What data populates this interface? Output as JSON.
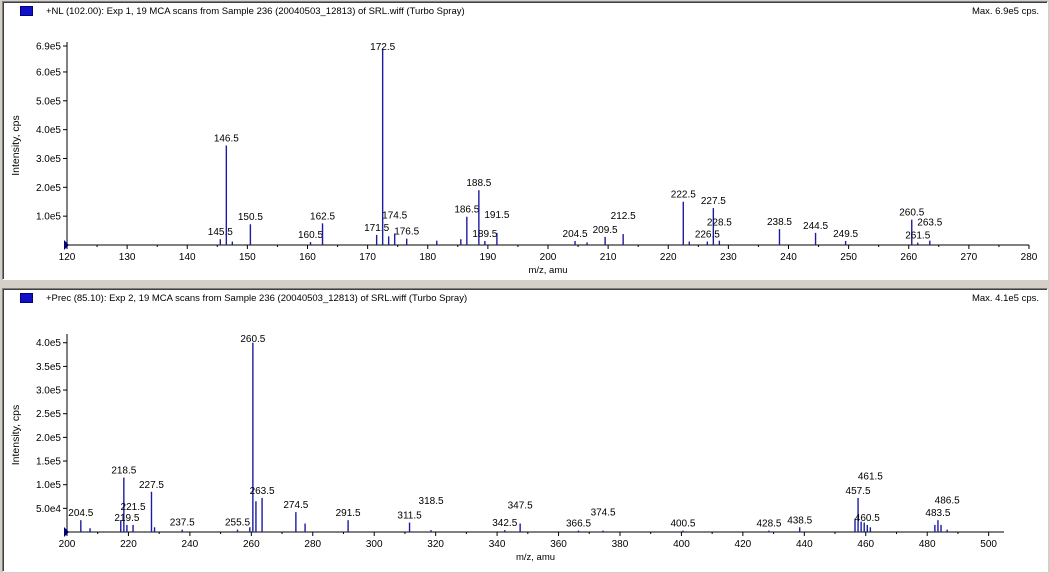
{
  "chart_data": [
    {
      "type": "bar",
      "title": "+NL (102.00): Exp 1, 19 MCA scans from Sample 236 (20040503_12813) of SRL.wiff (Turbo Spray)",
      "max_label": "Max. 6.9e5 cps.",
      "xlabel": "m/z, amu",
      "ylabel": "Intensity, cps",
      "xlim": [
        120,
        280
      ],
      "ylim": [
        0,
        690000
      ],
      "x_ticks": [
        120,
        130,
        140,
        150,
        160,
        170,
        180,
        190,
        200,
        210,
        220,
        230,
        240,
        250,
        260,
        270,
        280
      ],
      "y_ticks": [
        {
          "value": 100000,
          "label": "1.0e5"
        },
        {
          "value": 200000,
          "label": "2.0e5"
        },
        {
          "value": 300000,
          "label": "3.0e5"
        },
        {
          "value": 400000,
          "label": "4.0e5"
        },
        {
          "value": 500000,
          "label": "5.0e5"
        },
        {
          "value": 600000,
          "label": "6.0e5"
        },
        {
          "value": 690000,
          "label": "6.9e5"
        }
      ],
      "peaks": [
        {
          "x": 145.5,
          "y": 20000,
          "label": "145.5"
        },
        {
          "x": 146.5,
          "y": 345000,
          "label": "146.5"
        },
        {
          "x": 147.5,
          "y": 12000
        },
        {
          "x": 150.5,
          "y": 72000,
          "label": "150.5"
        },
        {
          "x": 160.5,
          "y": 10000,
          "label": "160.5"
        },
        {
          "x": 162.5,
          "y": 75000,
          "label": "162.5"
        },
        {
          "x": 171.5,
          "y": 35000,
          "label": "171.5"
        },
        {
          "x": 172.5,
          "y": 680000,
          "label": "172.5"
        },
        {
          "x": 173.5,
          "y": 30000
        },
        {
          "x": 174.5,
          "y": 40000,
          "label": "174.5"
        },
        {
          "x": 176.5,
          "y": 22000,
          "label": "176.5"
        },
        {
          "x": 181.5,
          "y": 15000
        },
        {
          "x": 185.5,
          "y": 20000
        },
        {
          "x": 186.5,
          "y": 98000,
          "label": "186.5"
        },
        {
          "x": 188.5,
          "y": 190000,
          "label": "188.5"
        },
        {
          "x": 189.5,
          "y": 14000,
          "label": "189.5"
        },
        {
          "x": 191.5,
          "y": 42000,
          "label": "191.5"
        },
        {
          "x": 204.5,
          "y": 14000,
          "label": "204.5"
        },
        {
          "x": 206.5,
          "y": 9000
        },
        {
          "x": 209.5,
          "y": 28000,
          "label": "209.5"
        },
        {
          "x": 212.5,
          "y": 38000,
          "label": "212.5"
        },
        {
          "x": 222.5,
          "y": 150000,
          "label": "222.5"
        },
        {
          "x": 223.5,
          "y": 12000
        },
        {
          "x": 226.5,
          "y": 12000,
          "label": "226.5"
        },
        {
          "x": 227.5,
          "y": 128000,
          "label": "227.5"
        },
        {
          "x": 228.5,
          "y": 15000,
          "label": "228.5"
        },
        {
          "x": 238.5,
          "y": 55000,
          "label": "238.5"
        },
        {
          "x": 244.5,
          "y": 42000,
          "label": "244.5"
        },
        {
          "x": 249.5,
          "y": 14000,
          "label": "249.5"
        },
        {
          "x": 260.5,
          "y": 88000,
          "label": "260.5"
        },
        {
          "x": 261.5,
          "y": 8000,
          "label": "261.5"
        },
        {
          "x": 263.5,
          "y": 15000,
          "label": "263.5"
        }
      ],
      "grid": false
    },
    {
      "type": "bar",
      "title": "+Prec (85.10): Exp 2, 19 MCA scans from Sample 236 (20040503_12813) of SRL.wiff (Turbo Spray)",
      "max_label": "Max. 4.1e5 cps.",
      "xlabel": "m/z, amu",
      "ylabel": "Intensity, cps",
      "xlim": [
        200,
        505
      ],
      "ylim": [
        0,
        410000
      ],
      "x_ticks": [
        200,
        220,
        240,
        260,
        280,
        300,
        320,
        340,
        360,
        380,
        400,
        420,
        440,
        460,
        480,
        500
      ],
      "y_ticks": [
        {
          "value": 50000,
          "label": "5.0e4"
        },
        {
          "value": 100000,
          "label": "1.0e5"
        },
        {
          "value": 150000,
          "label": "1.5e5"
        },
        {
          "value": 200000,
          "label": "2.0e5"
        },
        {
          "value": 250000,
          "label": "2.5e5"
        },
        {
          "value": 300000,
          "label": "3.0e5"
        },
        {
          "value": 350000,
          "label": "3.5e5"
        },
        {
          "value": 400000,
          "label": "4.0e5"
        }
      ],
      "peaks": [
        {
          "x": 204.5,
          "y": 25000,
          "label": "204.5"
        },
        {
          "x": 207.5,
          "y": 8000
        },
        {
          "x": 217.5,
          "y": 25000
        },
        {
          "x": 218.5,
          "y": 115000,
          "label": "218.5"
        },
        {
          "x": 219.5,
          "y": 15000,
          "label": "219.5"
        },
        {
          "x": 221.5,
          "y": 15000,
          "label": "221.5"
        },
        {
          "x": 227.5,
          "y": 85000,
          "label": "227.5"
        },
        {
          "x": 228.5,
          "y": 10000
        },
        {
          "x": 237.5,
          "y": 5000,
          "label": "237.5"
        },
        {
          "x": 255.5,
          "y": 5000,
          "label": "255.5"
        },
        {
          "x": 259.5,
          "y": 10000
        },
        {
          "x": 260.5,
          "y": 400000,
          "label": "260.5"
        },
        {
          "x": 261.5,
          "y": 65000
        },
        {
          "x": 263.5,
          "y": 72000,
          "label": "263.5"
        },
        {
          "x": 274.5,
          "y": 42000,
          "label": "274.5"
        },
        {
          "x": 277.5,
          "y": 18000
        },
        {
          "x": 291.5,
          "y": 25000,
          "label": "291.5"
        },
        {
          "x": 311.5,
          "y": 20000,
          "label": "311.5"
        },
        {
          "x": 318.5,
          "y": 4000,
          "label": "318.5"
        },
        {
          "x": 342.5,
          "y": 4000,
          "label": "342.5"
        },
        {
          "x": 347.5,
          "y": 18000,
          "label": "347.5"
        },
        {
          "x": 366.5,
          "y": 3000,
          "label": "366.5"
        },
        {
          "x": 374.5,
          "y": 3000,
          "label": "374.5"
        },
        {
          "x": 400.5,
          "y": 3000,
          "label": "400.5"
        },
        {
          "x": 428.5,
          "y": 3000,
          "label": "428.5"
        },
        {
          "x": 438.5,
          "y": 10000,
          "label": "438.5"
        },
        {
          "x": 456.5,
          "y": 28000
        },
        {
          "x": 457.5,
          "y": 72000,
          "label": "457.5"
        },
        {
          "x": 458.5,
          "y": 22000
        },
        {
          "x": 459.5,
          "y": 20000
        },
        {
          "x": 460.5,
          "y": 15000,
          "label": "460.5"
        },
        {
          "x": 461.5,
          "y": 10000,
          "label": "461.5"
        },
        {
          "x": 482.5,
          "y": 15000
        },
        {
          "x": 483.5,
          "y": 25000,
          "label": "483.5"
        },
        {
          "x": 484.5,
          "y": 15000
        },
        {
          "x": 486.5,
          "y": 5000,
          "label": "486.5"
        }
      ],
      "grid": false
    }
  ],
  "colors": {
    "peak": "#1c1ca0",
    "axis": "#000000",
    "legend_swatch": "#1010c8"
  }
}
